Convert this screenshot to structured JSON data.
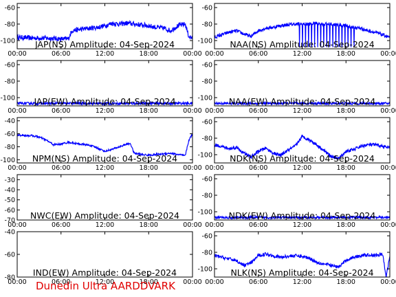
{
  "footer": "Dunedin Ultra AARDDVARK",
  "chart_data": [
    {
      "type": "line",
      "title": "JAP(NS) Amplitude: 04-Sep-2024",
      "ylim": [
        -110,
        -55
      ],
      "yticks": [
        -60,
        -80,
        -100
      ],
      "x_ticks": [
        "00:00",
        "06:00",
        "12:00",
        "18:00",
        "00:00"
      ],
      "noise": 3,
      "spikes": false,
      "series_color": "#0000ff",
      "x": [
        0,
        2,
        4,
        6,
        7,
        7.5,
        9,
        11,
        12,
        13,
        14,
        15,
        16,
        17,
        18,
        19,
        20,
        21,
        22,
        23,
        23.5,
        24
      ],
      "y": [
        -96,
        -97,
        -97,
        -98,
        -98,
        -88,
        -86,
        -84,
        -82,
        -79,
        -80,
        -79,
        -80,
        -81,
        -82,
        -84,
        -85,
        -88,
        -82,
        -80,
        -95,
        -97
      ]
    },
    {
      "type": "line",
      "title": "NAA(NS) Amplitude: 04-Sep-2024",
      "ylim": [
        -110,
        -55
      ],
      "yticks": [
        -60,
        -80,
        -100
      ],
      "x_ticks": [
        "00:00",
        "06:00",
        "12:00",
        "18:00",
        "00:00"
      ],
      "noise": 2,
      "spikes": true,
      "series_color": "#0000ff",
      "x": [
        0,
        1,
        2,
        3,
        4,
        5,
        6,
        7,
        8,
        9,
        10,
        11,
        12,
        13,
        14,
        15,
        16,
        17,
        18,
        19,
        20,
        21,
        22,
        23,
        24
      ],
      "y": [
        -96,
        -93,
        -90,
        -88,
        -92,
        -95,
        -88,
        -85,
        -84,
        -82,
        -81,
        -80,
        -80,
        -80,
        -79,
        -80,
        -80,
        -81,
        -82,
        -84,
        -85,
        -88,
        -90,
        -93,
        -96
      ]
    },
    {
      "type": "line",
      "title": "JAP(EW) Amplitude: 04-Sep-2024",
      "ylim": [
        -110,
        -55
      ],
      "yticks": [
        -60,
        -80,
        -100
      ],
      "x_ticks": [
        "00:00",
        "06:00",
        "12:00",
        "18:00",
        "00:00"
      ],
      "noise": 1.5,
      "spikes": false,
      "series_color": "#0000ff",
      "x": [
        0,
        6,
        12,
        18,
        24
      ],
      "y": [
        -107,
        -107,
        -107,
        -107,
        -107
      ]
    },
    {
      "type": "line",
      "title": "NAA(EW) Amplitude: 04-Sep-2024",
      "ylim": [
        -110,
        -55
      ],
      "yticks": [
        -60,
        -80,
        -100
      ],
      "x_ticks": [
        "00:00",
        "06:00",
        "12:00",
        "18:00",
        "00:00"
      ],
      "noise": 1.5,
      "spikes": false,
      "series_color": "#0000ff",
      "x": [
        0,
        6,
        12,
        18,
        24
      ],
      "y": [
        -107,
        -107,
        -107,
        -107,
        -107
      ]
    },
    {
      "type": "line",
      "title": "NPM(NS) Amplitude: 04-Sep-2024",
      "ylim": [
        -105,
        -35
      ],
      "yticks": [
        -40,
        -60,
        -80,
        -100
      ],
      "x_ticks": [
        "00:00",
        "06:00",
        "12:00",
        "18:00",
        "00:00"
      ],
      "noise": 1.5,
      "spikes": false,
      "series_color": "#0000ff",
      "x": [
        0,
        2,
        3,
        4,
        5,
        6,
        7,
        8,
        10,
        11,
        12,
        13,
        14,
        15,
        15.5,
        16,
        17,
        18,
        19,
        20,
        21,
        22,
        23,
        23.5,
        24
      ],
      "y": [
        -62,
        -63,
        -65,
        -70,
        -77,
        -76,
        -73,
        -75,
        -78,
        -82,
        -87,
        -84,
        -80,
        -76,
        -75,
        -90,
        -92,
        -93,
        -92,
        -91,
        -90,
        -92,
        -94,
        -70,
        -60
      ]
    },
    {
      "type": "line",
      "title": "NDK(NS) Amplitude: 04-Sep-2024",
      "ylim": [
        -110,
        -55
      ],
      "yticks": [
        -60,
        -80,
        -100
      ],
      "x_ticks": [
        "00:00",
        "06:00",
        "12:00",
        "18:00",
        "00:00"
      ],
      "noise": 2,
      "spikes": false,
      "series_color": "#0000ff",
      "x": [
        0,
        1,
        2,
        3,
        4,
        5,
        6,
        7,
        8,
        9,
        10,
        11,
        12,
        13,
        14,
        15,
        16,
        17,
        18,
        19,
        20,
        21,
        22,
        23,
        24
      ],
      "y": [
        -88,
        -90,
        -93,
        -91,
        -98,
        -103,
        -96,
        -92,
        -98,
        -101,
        -95,
        -90,
        -78,
        -82,
        -88,
        -95,
        -102,
        -105,
        -96,
        -94,
        -90,
        -88,
        -88,
        -90,
        -92
      ]
    },
    {
      "type": "line",
      "title": "NWC(EW) Amplitude: 04-Sep-2024",
      "ylim": [
        -70,
        -25
      ],
      "yticks": [
        -30,
        -40,
        -50,
        -60,
        -70
      ],
      "x_ticks": [
        "00:00",
        "06:00",
        "12:00",
        "18:00",
        "00:00"
      ],
      "noise": 0,
      "spikes": false,
      "series_color": "#0000ff",
      "x": [],
      "y": []
    },
    {
      "type": "line",
      "title": "NDK(EW) Amplitude: 04-Sep-2024",
      "ylim": [
        -110,
        -55
      ],
      "yticks": [
        -60,
        -80,
        -100
      ],
      "x_ticks": [
        "00:00",
        "06:00",
        "12:00",
        "18:00",
        "00:00"
      ],
      "noise": 1.5,
      "spikes": false,
      "series_color": "#0000ff",
      "x": [
        0,
        6,
        12,
        18,
        24
      ],
      "y": [
        -107,
        -107,
        -107,
        -107,
        -107
      ]
    },
    {
      "type": "line",
      "title": "IND(EW) Amplitude: 04-Sep-2024",
      "ylim": [
        -80,
        -40
      ],
      "yticks": [
        -40,
        -60,
        -80
      ],
      "x_ticks": [
        "00:00",
        "06:00",
        "12:00",
        "18:00",
        "00:00"
      ],
      "noise": 0,
      "spikes": false,
      "series_color": "#0000ff",
      "x": [],
      "y": []
    },
    {
      "type": "line",
      "title": "NLK(NS) Amplitude: 04-Sep-2024",
      "ylim": [
        -110,
        -55
      ],
      "yticks": [
        -60,
        -80,
        -100
      ],
      "x_ticks": [
        "00:00",
        "06:00",
        "12:00",
        "18:00",
        "00:00"
      ],
      "noise": 2,
      "spikes": false,
      "series_color": "#0000ff",
      "x": [
        0,
        1,
        2,
        3,
        4,
        5,
        6,
        7,
        8,
        9,
        10,
        11,
        12,
        13,
        14,
        15,
        16,
        17,
        18,
        19,
        20,
        21,
        22,
        23,
        23.5,
        24
      ],
      "y": [
        -84,
        -86,
        -88,
        -90,
        -96,
        -93,
        -84,
        -82,
        -84,
        -86,
        -85,
        -84,
        -85,
        -87,
        -92,
        -94,
        -96,
        -98,
        -90,
        -86,
        -84,
        -83,
        -84,
        -82,
        -110,
        -85
      ]
    }
  ]
}
